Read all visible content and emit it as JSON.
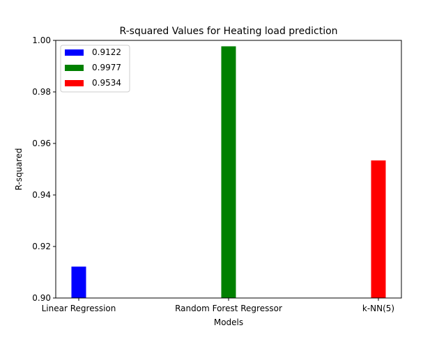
{
  "chart_data": {
    "type": "bar",
    "title": "R-squared Values for Heating load prediction",
    "xlabel": "Models",
    "ylabel": "R-squared",
    "categories": [
      "Linear Regression",
      "Random Forest Regressor",
      "k-NN(5)"
    ],
    "values": [
      0.9122,
      0.9977,
      0.9534
    ],
    "colors": [
      "#0000ff",
      "#008000",
      "#ff0000"
    ],
    "ylim": [
      0.9,
      1.0
    ],
    "yticks": [
      "0.90",
      "0.92",
      "0.94",
      "0.96",
      "0.98",
      "1.00"
    ],
    "grid": false,
    "legend": {
      "placement": "top-left",
      "entries": [
        "0.9122",
        "0.9977",
        "0.9534"
      ]
    }
  }
}
